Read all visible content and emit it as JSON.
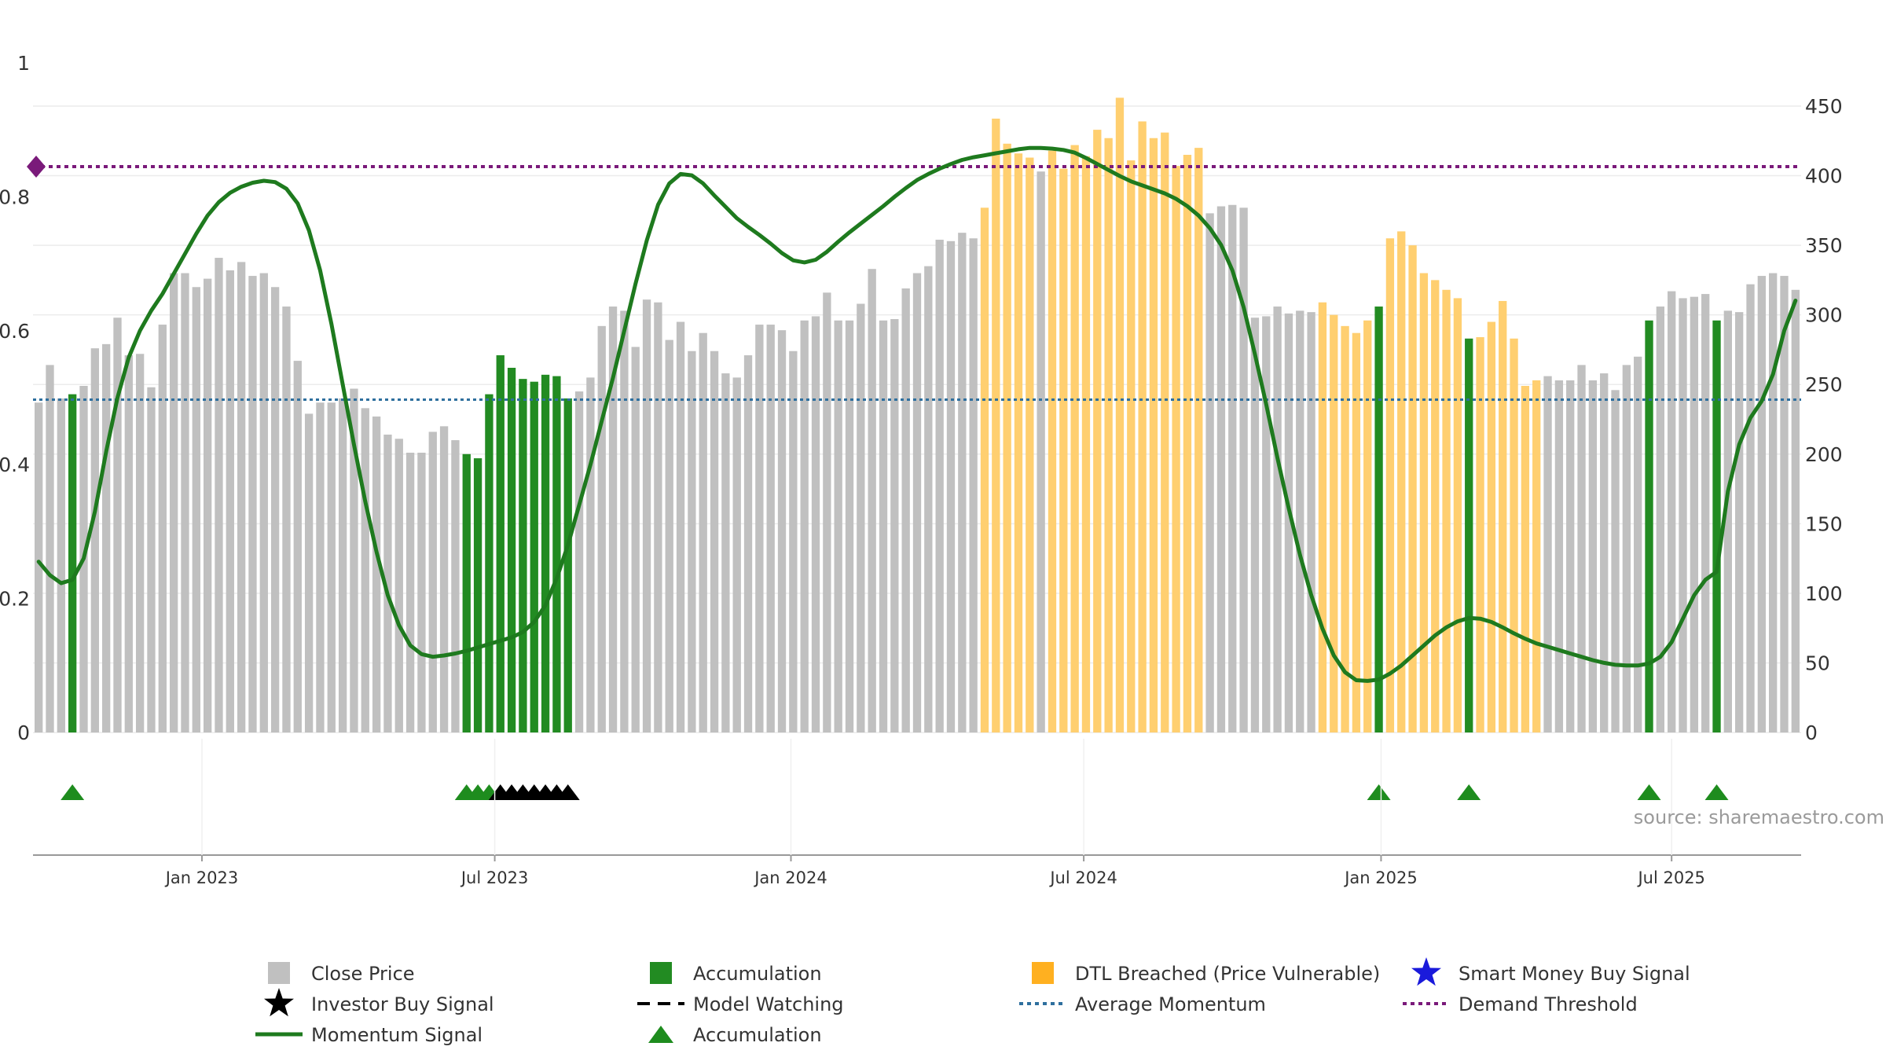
{
  "chart_data": {
    "type": "bar",
    "source": "source: sharemaestro.com",
    "left_axis": {
      "ylim": [
        0,
        1
      ],
      "ticks": [
        "0",
        "0.2",
        "0.4",
        "0.6",
        "0.8",
        "1"
      ]
    },
    "right_axis": {
      "ylim": [
        0,
        450
      ],
      "ticks": [
        "0",
        "50",
        "100",
        "150",
        "200",
        "250",
        "300",
        "350",
        "400",
        "450"
      ]
    },
    "x_axis": {
      "ticks": [
        {
          "label": "Jan 2023",
          "week": 14.5
        },
        {
          "label": "Jul 2023",
          "week": 40.5
        },
        {
          "label": "Jan 2024",
          "week": 66.8
        },
        {
          "label": "Jul 2024",
          "week": 92.8
        },
        {
          "label": "Jan 2025",
          "week": 119.2
        },
        {
          "label": "Jul 2025",
          "week": 145.0
        }
      ]
    },
    "grid": true,
    "legend_position": "bottom",
    "legend": [
      {
        "label": "Close Price",
        "symbol": "square",
        "color": "#c0c0c0"
      },
      {
        "label": "Accumulation",
        "symbol": "square",
        "color": "#228b22"
      },
      {
        "label": "DTL Breached (Price Vulnerable)",
        "symbol": "square",
        "color": "#ffb020"
      },
      {
        "label": "Smart Money Buy Signal",
        "symbol": "star",
        "color": "#1a1adb"
      },
      {
        "label": "Investor Buy Signal",
        "symbol": "star",
        "color": "#000000"
      },
      {
        "label": "Model Watching",
        "symbol": "dash",
        "color": "#000000"
      },
      {
        "label": "Average Momentum",
        "symbol": "dot",
        "color": "#2e6f9e"
      },
      {
        "label": "Demand Threshold",
        "symbol": "dot",
        "color": "#7a1a7a"
      },
      {
        "label": "Momentum Signal",
        "symbol": "line",
        "color": "#1e7a1e"
      },
      {
        "label": "Accumulation",
        "symbol": "triangle",
        "color": "#1e8c1e"
      }
    ],
    "colors": {
      "gray": "#c0c0c0",
      "green": "#228b22",
      "orange": "#ffcf70",
      "momentum": "#1e7a1e",
      "average": "#2e6f9e",
      "threshold": "#7a1a7a"
    },
    "close_prices": [
      237,
      264,
      240,
      243,
      249,
      276,
      279,
      298,
      271,
      272,
      248,
      293,
      330,
      330,
      320,
      326,
      341,
      332,
      338,
      328,
      330,
      320,
      306,
      267,
      229,
      237,
      237,
      240,
      247,
      233,
      227,
      214,
      211,
      201,
      201,
      216,
      220,
      210,
      200,
      197,
      243,
      271,
      262,
      254,
      252,
      257,
      256,
      240,
      245,
      255,
      292,
      306,
      303,
      277,
      311,
      309,
      282,
      295,
      274,
      287,
      274,
      258,
      255,
      271,
      293,
      293,
      289,
      274,
      296,
      299,
      316,
      296,
      296,
      308,
      333,
      296,
      297,
      319,
      330,
      335,
      354,
      353,
      359,
      355,
      377,
      441,
      423,
      416,
      413,
      403,
      418,
      405,
      422,
      414,
      433,
      427,
      456,
      411,
      439,
      427,
      431,
      407,
      415,
      420,
      373,
      378,
      379,
      377,
      298,
      299,
      306,
      301,
      303,
      302,
      309,
      300,
      292,
      287,
      296,
      306,
      355,
      360,
      350,
      330,
      325,
      318,
      312,
      283,
      284,
      295,
      310,
      283,
      249,
      253,
      256,
      253,
      253,
      264,
      253,
      258,
      246,
      264,
      270,
      296,
      306,
      317,
      312,
      313,
      315,
      296,
      303,
      302,
      322,
      328,
      330,
      328,
      318
    ],
    "bar_category": "ggggggggggggggggggggggggggggggggggggggaaaaaaaaaaggggggggggggggggggggggggggggggggggggggggggggggggggggggggggggggggggoooooooooooooooooooogggggggggggggggggggggggggggggggggggggggggggggggggggggggggggggggggggg",
    "accumulation_weeks": [
      3,
      38,
      39,
      40,
      41,
      42,
      43,
      44,
      45,
      46,
      47,
      119,
      127,
      143,
      149
    ],
    "override_categories": {
      "3": "a",
      "119": "a",
      "127": "a",
      "143": "a",
      "149": "a",
      "84": "o",
      "85": "o",
      "86": "o",
      "87": "o",
      "88": "o",
      "90": "o",
      "91": "o",
      "92": "o",
      "93": "o",
      "94": "o",
      "95": "o",
      "96": "o",
      "97": "o",
      "98": "o",
      "99": "o",
      "100": "o",
      "101": "o",
      "102": "o",
      "103": "o",
      "89": "g",
      "104": "g"
    },
    "momentum": [
      [
        0,
        0.255
      ],
      [
        1,
        0.235
      ],
      [
        2,
        0.223
      ],
      [
        3,
        0.228
      ],
      [
        4,
        0.26
      ],
      [
        5,
        0.33
      ],
      [
        6,
        0.42
      ],
      [
        7,
        0.5
      ],
      [
        8,
        0.56
      ],
      [
        9,
        0.6
      ],
      [
        10,
        0.63
      ],
      [
        11,
        0.655
      ],
      [
        12,
        0.685
      ],
      [
        13,
        0.715
      ],
      [
        14,
        0.745
      ],
      [
        15,
        0.772
      ],
      [
        16,
        0.792
      ],
      [
        17,
        0.806
      ],
      [
        18,
        0.815
      ],
      [
        19,
        0.821
      ],
      [
        20,
        0.824
      ],
      [
        21,
        0.822
      ],
      [
        22,
        0.812
      ],
      [
        23,
        0.79
      ],
      [
        24,
        0.75
      ],
      [
        25,
        0.69
      ],
      [
        26,
        0.61
      ],
      [
        27,
        0.52
      ],
      [
        28,
        0.43
      ],
      [
        29,
        0.345
      ],
      [
        30,
        0.27
      ],
      [
        31,
        0.205
      ],
      [
        32,
        0.16
      ],
      [
        33,
        0.13
      ],
      [
        34,
        0.117
      ],
      [
        35,
        0.113
      ],
      [
        36,
        0.115
      ],
      [
        37,
        0.118
      ],
      [
        38,
        0.122
      ],
      [
        39,
        0.127
      ],
      [
        40,
        0.132
      ],
      [
        41,
        0.137
      ],
      [
        42,
        0.142
      ],
      [
        43,
        0.15
      ],
      [
        44,
        0.165
      ],
      [
        45,
        0.19
      ],
      [
        46,
        0.23
      ],
      [
        47,
        0.28
      ],
      [
        48,
        0.34
      ],
      [
        49,
        0.4
      ],
      [
        50,
        0.465
      ],
      [
        51,
        0.53
      ],
      [
        52,
        0.6
      ],
      [
        53,
        0.67
      ],
      [
        54,
        0.735
      ],
      [
        55,
        0.788
      ],
      [
        56,
        0.82
      ],
      [
        57,
        0.834
      ],
      [
        58,
        0.832
      ],
      [
        59,
        0.82
      ],
      [
        60,
        0.802
      ],
      [
        61,
        0.785
      ],
      [
        62,
        0.768
      ],
      [
        63,
        0.755
      ],
      [
        64,
        0.743
      ],
      [
        65,
        0.73
      ],
      [
        66,
        0.716
      ],
      [
        67,
        0.705
      ],
      [
        68,
        0.702
      ],
      [
        69,
        0.706
      ],
      [
        70,
        0.718
      ],
      [
        71,
        0.733
      ],
      [
        72,
        0.747
      ],
      [
        73,
        0.76
      ],
      [
        74,
        0.773
      ],
      [
        75,
        0.786
      ],
      [
        76,
        0.8
      ],
      [
        77,
        0.813
      ],
      [
        78,
        0.825
      ],
      [
        79,
        0.834
      ],
      [
        80,
        0.842
      ],
      [
        81,
        0.849
      ],
      [
        82,
        0.855
      ],
      [
        83,
        0.859
      ],
      [
        84,
        0.862
      ],
      [
        85,
        0.865
      ],
      [
        86,
        0.868
      ],
      [
        87,
        0.871
      ],
      [
        88,
        0.873
      ],
      [
        89,
        0.873
      ],
      [
        90,
        0.872
      ],
      [
        91,
        0.87
      ],
      [
        92,
        0.866
      ],
      [
        93,
        0.858
      ],
      [
        94,
        0.849
      ],
      [
        95,
        0.84
      ],
      [
        96,
        0.831
      ],
      [
        97,
        0.823
      ],
      [
        98,
        0.817
      ],
      [
        99,
        0.811
      ],
      [
        100,
        0.805
      ],
      [
        101,
        0.797
      ],
      [
        102,
        0.786
      ],
      [
        103,
        0.772
      ],
      [
        104,
        0.753
      ],
      [
        105,
        0.728
      ],
      [
        106,
        0.69
      ],
      [
        107,
        0.635
      ],
      [
        108,
        0.565
      ],
      [
        109,
        0.49
      ],
      [
        110,
        0.41
      ],
      [
        111,
        0.335
      ],
      [
        112,
        0.265
      ],
      [
        113,
        0.205
      ],
      [
        114,
        0.155
      ],
      [
        115,
        0.115
      ],
      [
        116,
        0.09
      ],
      [
        117,
        0.078
      ],
      [
        118,
        0.077
      ],
      [
        119,
        0.079
      ],
      [
        120,
        0.088
      ],
      [
        121,
        0.1
      ],
      [
        122,
        0.115
      ],
      [
        123,
        0.13
      ],
      [
        124,
        0.145
      ],
      [
        125,
        0.157
      ],
      [
        126,
        0.166
      ],
      [
        127,
        0.171
      ],
      [
        128,
        0.17
      ],
      [
        129,
        0.165
      ],
      [
        130,
        0.157
      ],
      [
        131,
        0.148
      ],
      [
        132,
        0.14
      ],
      [
        133,
        0.133
      ],
      [
        134,
        0.128
      ],
      [
        135,
        0.123
      ],
      [
        136,
        0.118
      ],
      [
        137,
        0.113
      ],
      [
        138,
        0.108
      ],
      [
        139,
        0.104
      ],
      [
        140,
        0.101
      ],
      [
        141,
        0.1
      ],
      [
        142,
        0.1
      ],
      [
        143,
        0.103
      ],
      [
        144,
        0.113
      ],
      [
        145,
        0.135
      ],
      [
        146,
        0.17
      ],
      [
        147,
        0.205
      ],
      [
        148,
        0.228
      ],
      [
        149,
        0.24
      ],
      [
        150,
        0.36
      ],
      [
        151,
        0.43
      ],
      [
        152,
        0.47
      ],
      [
        153,
        0.495
      ],
      [
        154,
        0.535
      ],
      [
        155,
        0.6
      ],
      [
        156,
        0.645
      ]
    ],
    "average_momentum": 0.497,
    "demand_threshold": 0.845,
    "triangles_green": [
      3,
      38,
      39,
      40,
      119,
      127,
      143,
      149
    ],
    "triangles_black": [
      41,
      42,
      43,
      44,
      45,
      46,
      47
    ]
  }
}
